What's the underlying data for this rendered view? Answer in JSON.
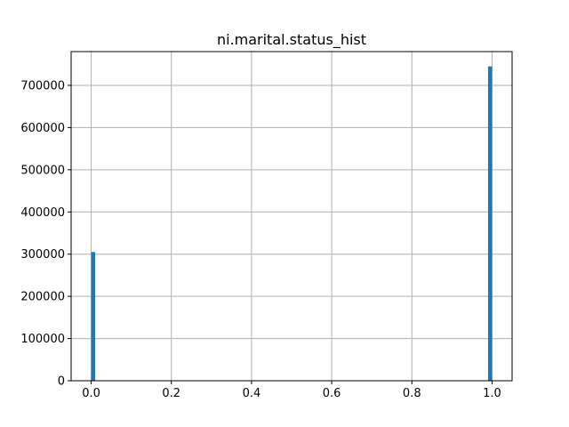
{
  "chart_data": {
    "type": "bar",
    "title": "ni.marital.status_hist",
    "xlabel": "",
    "ylabel": "",
    "xlim": [
      -0.05,
      1.05
    ],
    "ylim": [
      0,
      780000
    ],
    "grid": true,
    "bar_color": "#1f77b4",
    "bins": [
      {
        "x_start": 0.0,
        "x_end": 0.01,
        "count": 305000
      },
      {
        "x_start": 0.99,
        "x_end": 1.0,
        "count": 745000
      }
    ],
    "x_ticks": [
      0.0,
      0.2,
      0.4,
      0.6,
      0.8,
      1.0
    ],
    "x_tick_labels": [
      "0.0",
      "0.2",
      "0.4",
      "0.6",
      "0.8",
      "1.0"
    ],
    "y_ticks": [
      0,
      100000,
      200000,
      300000,
      400000,
      500000,
      600000,
      700000
    ],
    "y_tick_labels": [
      "0",
      "100000",
      "200000",
      "300000",
      "400000",
      "500000",
      "600000",
      "700000"
    ]
  }
}
